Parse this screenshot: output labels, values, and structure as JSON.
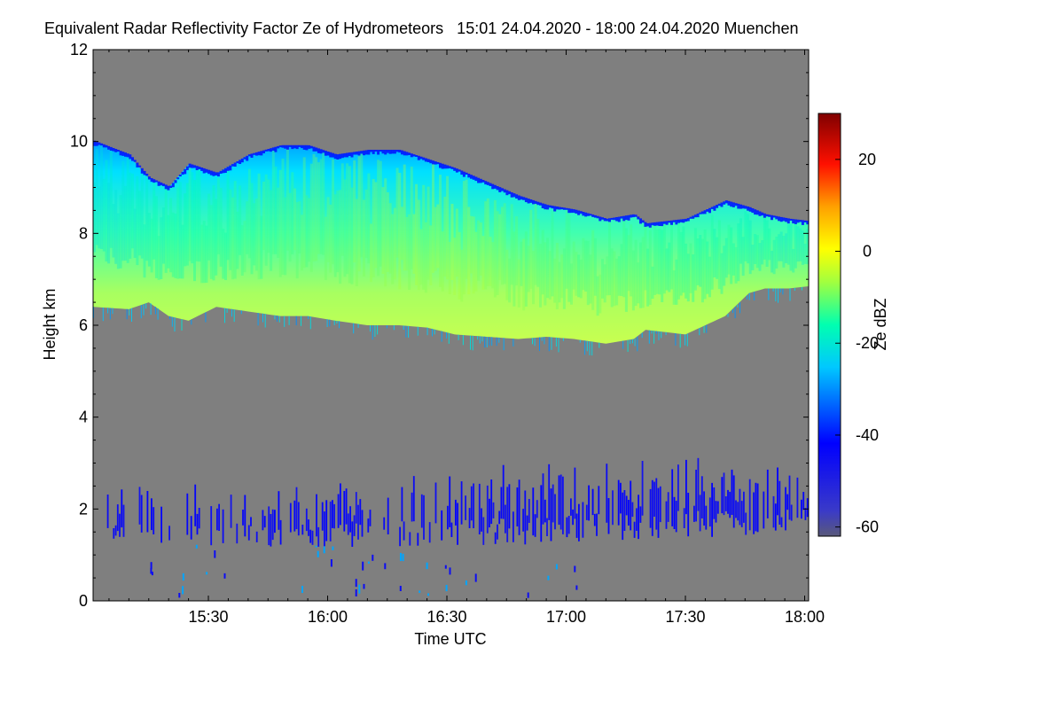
{
  "title": "Equivalent Radar Reflectivity Factor Ze of Hydrometeors   15:01 24.04.2020 - 18:00 24.04.2020 Muenchen",
  "chart_data": {
    "type": "heatmap",
    "title": "Equivalent Radar Reflectivity Factor Ze of Hydrometeors",
    "time_range": "15:01 24.04.2020 - 18:00 24.04.2020",
    "location": "Muenchen",
    "xlabel": "Time UTC",
    "ylabel": "Height km",
    "x_unit": "minutes since 15:00 UTC",
    "xlim": [
      1,
      181
    ],
    "ylim": [
      0,
      12
    ],
    "x_ticks": [
      {
        "value": 30,
        "label": "15:30"
      },
      {
        "value": 60,
        "label": "16:00"
      },
      {
        "value": 90,
        "label": "16:30"
      },
      {
        "value": 120,
        "label": "17:00"
      },
      {
        "value": 150,
        "label": "17:30"
      },
      {
        "value": 180,
        "label": "18:00"
      }
    ],
    "y_ticks": [
      {
        "value": 0,
        "label": "0"
      },
      {
        "value": 2,
        "label": "2"
      },
      {
        "value": 4,
        "label": "4"
      },
      {
        "value": 6,
        "label": "6"
      },
      {
        "value": 8,
        "label": "8"
      },
      {
        "value": 10,
        "label": "10"
      },
      {
        "value": 12,
        "label": "12"
      }
    ],
    "colorbar": {
      "label": "Ze dBZ",
      "range": [
        -62,
        30
      ],
      "ticks": [
        {
          "value": -60,
          "label": "-60"
        },
        {
          "value": -40,
          "label": "-40"
        },
        {
          "value": -20,
          "label": "-20"
        },
        {
          "value": 0,
          "label": "0"
        },
        {
          "value": 20,
          "label": "20"
        }
      ]
    },
    "no_data_color": "#7f7f7f",
    "layers": [
      {
        "name": "upper cloud layer",
        "times": [
          1,
          10,
          15,
          20,
          25,
          32,
          40,
          48,
          55,
          62,
          70,
          78,
          85,
          92,
          100,
          108,
          115,
          122,
          130,
          137,
          140,
          150,
          160,
          166,
          170,
          176,
          181
        ],
        "cloud_base_km": [
          6.4,
          6.35,
          6.5,
          6.2,
          6.1,
          6.4,
          6.3,
          6.2,
          6.2,
          6.1,
          6.0,
          6.0,
          5.95,
          5.8,
          5.75,
          5.7,
          5.75,
          5.7,
          5.6,
          5.7,
          5.9,
          5.8,
          6.2,
          6.7,
          6.8,
          6.8,
          6.85
        ],
        "cloud_top_km": [
          10.0,
          9.7,
          9.2,
          9.0,
          9.5,
          9.3,
          9.7,
          9.9,
          9.9,
          9.7,
          9.8,
          9.8,
          9.6,
          9.4,
          9.1,
          8.8,
          8.6,
          8.5,
          8.3,
          8.4,
          8.2,
          8.3,
          8.7,
          8.55,
          8.4,
          8.3,
          8.25
        ],
        "peak_ze_dbz": [
          -18,
          -17,
          -15,
          -14,
          -13,
          -12,
          -11,
          -10,
          -9,
          -8,
          -7,
          -6,
          -5,
          -4,
          -6,
          -8,
          -9,
          -10,
          -10,
          -11,
          -12,
          -13,
          -14,
          -15,
          -16,
          -17,
          -18
        ]
      },
      {
        "name": "lower layer (boundary layer echoes)",
        "times": [
          1,
          20,
          40,
          60,
          80,
          100,
          120,
          140,
          160,
          181
        ],
        "base_km": [
          1.3,
          1.2,
          1.2,
          1.1,
          1.2,
          1.2,
          1.2,
          1.3,
          1.4,
          1.5
        ],
        "top_km": [
          2.1,
          2.2,
          2.1,
          2.2,
          2.3,
          2.4,
          2.5,
          2.6,
          2.6,
          2.5
        ],
        "typical_ze_dbz": -45
      }
    ]
  }
}
